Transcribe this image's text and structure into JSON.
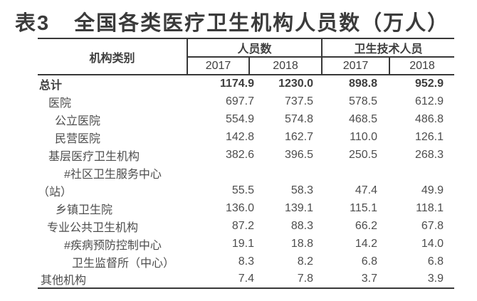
{
  "page": {
    "background": "#ffffff"
  },
  "title": {
    "prefix": "表3",
    "text": "全国各类医疗卫生机构人员数（万人）"
  },
  "table": {
    "category_header": "机构类别",
    "groups": [
      {
        "label": "人员数",
        "years": [
          "2017",
          "2018"
        ]
      },
      {
        "label": "卫生技术人员",
        "years": [
          "2017",
          "2018"
        ]
      }
    ],
    "rows": [
      {
        "label": "总计",
        "indent": 2,
        "bold": true,
        "values": [
          "1174.9",
          "1230.0",
          "898.8",
          "952.9"
        ]
      },
      {
        "label": "医院",
        "indent": 15,
        "bold": false,
        "values": [
          "697.7",
          "737.5",
          "578.5",
          "612.9"
        ]
      },
      {
        "label": "公立医院",
        "indent": 24,
        "bold": false,
        "values": [
          "554.9",
          "574.8",
          "468.5",
          "486.8"
        ]
      },
      {
        "label": "民营医院",
        "indent": 24,
        "bold": false,
        "values": [
          "142.8",
          "162.7",
          "110.0",
          "126.1"
        ]
      },
      {
        "label": "基层医疗卫生机构",
        "indent": 15,
        "bold": false,
        "values": [
          "382.6",
          "396.5",
          "250.5",
          "268.3"
        ]
      },
      {
        "label": "#社区卫生服务中心",
        "indent": 37,
        "bold": false,
        "values": [
          "",
          "",
          "",
          ""
        ]
      },
      {
        "label": "（站）",
        "indent": 0,
        "bold": false,
        "values": [
          "55.5",
          "58.3",
          "47.4",
          "49.9"
        ]
      },
      {
        "label": "乡镇卫生院",
        "indent": 25,
        "bold": false,
        "values": [
          "136.0",
          "139.1",
          "115.1",
          "118.1"
        ]
      },
      {
        "label": "专业公共卫生机构",
        "indent": 13,
        "bold": false,
        "values": [
          "87.2",
          "88.3",
          "66.2",
          "67.8"
        ]
      },
      {
        "label": "#疾病预防控制中心",
        "indent": 37,
        "bold": false,
        "values": [
          "19.1",
          "18.8",
          "14.2",
          "14.0"
        ]
      },
      {
        "label": "卫生监督所（中心）",
        "indent": 48,
        "bold": false,
        "values": [
          "8.3",
          "8.2",
          "6.8",
          "6.8"
        ]
      },
      {
        "label": "其他机构",
        "indent": 4,
        "bold": false,
        "values": [
          "7.4",
          "7.8",
          "3.7",
          "3.9"
        ]
      }
    ],
    "colors": {
      "line": "#383838",
      "title_ink": "#3b3b3b",
      "text_ink": "#4d4d4d"
    }
  }
}
